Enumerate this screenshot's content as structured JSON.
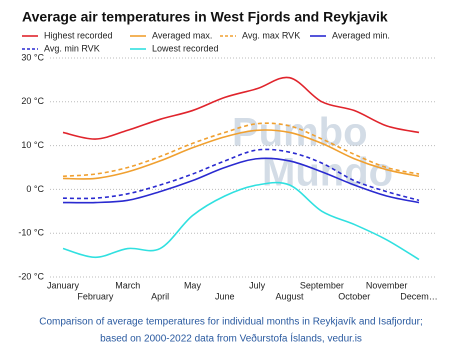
{
  "chart_data": {
    "type": "line",
    "title": "Average air temperatures in West Fjords and Reykjavik",
    "caption": [
      "Comparison of average temperatures for individual months in Reykjavík and Isafjordur;",
      "based on 2000-2022 data from Veðurstofa Íslands, vedur.is"
    ],
    "watermark": [
      "Pumbo",
      "Mundo"
    ],
    "categories": [
      "January",
      "February",
      "March",
      "April",
      "May",
      "June",
      "July",
      "August",
      "September",
      "October",
      "November",
      "Decem…"
    ],
    "series": [
      {
        "name": "Highest recorded",
        "color": "#e0242c",
        "dashed": false,
        "values": [
          13,
          11.5,
          13.5,
          16,
          18,
          21,
          23,
          25.5,
          20,
          18,
          14.5,
          13
        ]
      },
      {
        "name": "Averaged max.",
        "color": "#f0a030",
        "dashed": false,
        "values": [
          2.5,
          2.5,
          4,
          6.5,
          9.5,
          12,
          13.5,
          13,
          10.5,
          7,
          4.5,
          3
        ]
      },
      {
        "name": "Avg. max RVK",
        "color": "#f0a030",
        "dashed": true,
        "values": [
          3,
          3.5,
          5,
          7.5,
          10.5,
          13,
          15,
          14.5,
          11.5,
          8,
          5,
          3.5
        ]
      },
      {
        "name": "Averaged min.",
        "color": "#2a2ad0",
        "dashed": false,
        "values": [
          -3,
          -3,
          -2.5,
          -0.5,
          2,
          5,
          7,
          6.5,
          4,
          1,
          -1.5,
          -3
        ]
      },
      {
        "name": "Avg. min RVK",
        "color": "#2a2ad0",
        "dashed": true,
        "values": [
          -2,
          -2,
          -1,
          1,
          3.5,
          6.5,
          9,
          8.5,
          6,
          2,
          -0.5,
          -2.5
        ]
      },
      {
        "name": "Lowest recorded",
        "color": "#30e0e0",
        "dashed": false,
        "values": [
          -13.5,
          -15.5,
          -13.5,
          -13.5,
          -6,
          -1.5,
          1,
          1,
          -5,
          -8,
          -11.5,
          -16
        ]
      }
    ],
    "ylim": [
      -20,
      30
    ],
    "yticks": [
      {
        "value": -20,
        "label": "-20 °C"
      },
      {
        "value": -10,
        "label": "-10 °C"
      },
      {
        "value": 0,
        "label": "0 °C"
      },
      {
        "value": 10,
        "label": "10 °C"
      },
      {
        "value": 20,
        "label": "20 °C"
      },
      {
        "value": 30,
        "label": "30 °C"
      }
    ],
    "grid": true
  }
}
